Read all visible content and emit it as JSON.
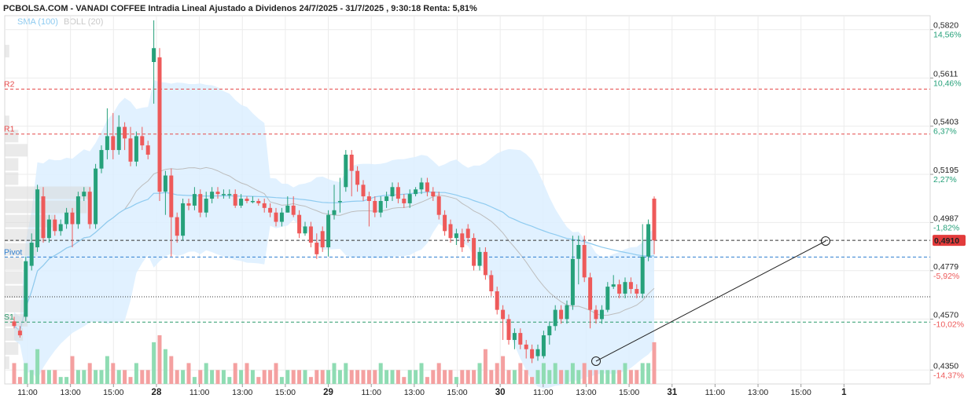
{
  "header": {
    "title": "PCBOLSA.COM - VANADI COFFEE Intradia Lineal Ajustado a Dividenos 24/7/2025 - 31/7/2025 , 9:30:18 Renta: 5,81%",
    "legend_sma": "SMA (100)",
    "legend_boll": "BOLL (20)"
  },
  "colors": {
    "up": "#26a17a",
    "down": "#ee5a5a",
    "volume_up": "#8fdcb3",
    "volume_down": "#f4a0a0",
    "band_fill": "#dcefff",
    "sma": "#8ecbf0",
    "boll_mid": "#bdbdbd",
    "resistance": "#e64a4a",
    "pivot": "#2f7fd0",
    "support": "#2a9a6a",
    "current_price_bg": "#e23b3b"
  },
  "chart_data": {
    "type": "candlestick",
    "title": "PCBOLSA.COM - VANADI COFFEE Intradia Lineal Ajustado a Dividenos 24/7/2025 - 31/7/2025 , 9:30:18 Renta: 5,81%",
    "ylim": [
      0.429,
      0.588
    ],
    "grid": true,
    "x_ticks": [
      {
        "label": "11:00",
        "day": false
      },
      {
        "label": "13:00",
        "day": false
      },
      {
        "label": "15:00",
        "day": false
      },
      {
        "label": "28",
        "day": true
      },
      {
        "label": "11:00",
        "day": false
      },
      {
        "label": "13:00",
        "day": false
      },
      {
        "label": "15:00",
        "day": false
      },
      {
        "label": "29",
        "day": true
      },
      {
        "label": "11:00",
        "day": false
      },
      {
        "label": "13:00",
        "day": false
      },
      {
        "label": "15:00",
        "day": false
      },
      {
        "label": "30",
        "day": true
      },
      {
        "label": "11:00",
        "day": false
      },
      {
        "label": "13:00",
        "day": false
      },
      {
        "label": "15:00",
        "day": false
      },
      {
        "label": "31",
        "day": true
      },
      {
        "label": "11:00",
        "day": false
      },
      {
        "label": "13:00",
        "day": false
      },
      {
        "label": "15:00",
        "day": false
      },
      {
        "label": "1",
        "day": true
      }
    ],
    "y_axis": [
      {
        "price": "0,5820",
        "pct": "14,56%",
        "value": 0.582
      },
      {
        "price": "0,5611",
        "pct": "10,46%",
        "value": 0.5611
      },
      {
        "price": "0,5403",
        "pct": "6,37%",
        "value": 0.5403
      },
      {
        "price": "0,5195",
        "pct": "2,27%",
        "value": 0.5195
      },
      {
        "price": "0,4987",
        "pct": "-1,82%",
        "value": 0.4987
      },
      {
        "price": "0,4779",
        "pct": "-5,92%",
        "value": 0.4779
      },
      {
        "price": "0,4570",
        "pct": "-10,02%",
        "value": 0.457
      },
      {
        "price": "0,4350",
        "pct": "-14,37%",
        "value": 0.435
      }
    ],
    "current_price": {
      "label": "0,4910",
      "value": 0.491
    },
    "levels": [
      {
        "name": "R2",
        "value": 0.5563,
        "kind": "resistance"
      },
      {
        "name": "R1",
        "value": 0.5369,
        "kind": "resistance"
      },
      {
        "name": "Pivot",
        "value": 0.4838,
        "kind": "pivot"
      },
      {
        "name": "S1",
        "value": 0.4557,
        "kind": "support"
      }
    ],
    "candles": [
      [
        0.456,
        0.454,
        0.458,
        0.453
      ],
      [
        0.452,
        0.45,
        0.454,
        0.449
      ],
      [
        0.458,
        0.482,
        0.484,
        0.456
      ],
      [
        0.48,
        0.49,
        0.494,
        0.478
      ],
      [
        0.488,
        0.513,
        0.515,
        0.486
      ],
      [
        0.51,
        0.492,
        0.514,
        0.49
      ],
      [
        0.492,
        0.5,
        0.502,
        0.49
      ],
      [
        0.5,
        0.495,
        0.502,
        0.493
      ],
      [
        0.495,
        0.498,
        0.5,
        0.493
      ],
      [
        0.498,
        0.503,
        0.505,
        0.496
      ],
      [
        0.503,
        0.498,
        0.505,
        0.488
      ],
      [
        0.498,
        0.51,
        0.512,
        0.496
      ],
      [
        0.51,
        0.512,
        0.514,
        0.508
      ],
      [
        0.512,
        0.498,
        0.514,
        0.496
      ],
      [
        0.498,
        0.522,
        0.524,
        0.496
      ],
      [
        0.522,
        0.53,
        0.532,
        0.52
      ],
      [
        0.53,
        0.536,
        0.548,
        0.526
      ],
      [
        0.536,
        0.53,
        0.546,
        0.526
      ],
      [
        0.53,
        0.54,
        0.545,
        0.528
      ],
      [
        0.54,
        0.535,
        0.542,
        0.53
      ],
      [
        0.535,
        0.525,
        0.54,
        0.523
      ],
      [
        0.525,
        0.536,
        0.538,
        0.523
      ],
      [
        0.536,
        0.532,
        0.54,
        0.53
      ],
      [
        0.532,
        0.528,
        0.534,
        0.526
      ],
      [
        0.568,
        0.574,
        0.586,
        0.55
      ],
      [
        0.57,
        0.512,
        0.574,
        0.508
      ],
      [
        0.512,
        0.519,
        0.521,
        0.502
      ],
      [
        0.519,
        0.501,
        0.522,
        0.484
      ],
      [
        0.501,
        0.493,
        0.503,
        0.49
      ],
      [
        0.493,
        0.507,
        0.509,
        0.491
      ],
      [
        0.507,
        0.506,
        0.509,
        0.504
      ],
      [
        0.506,
        0.511,
        0.514,
        0.504
      ],
      [
        0.511,
        0.503,
        0.513,
        0.501
      ],
      [
        0.503,
        0.509,
        0.512,
        0.501
      ],
      [
        0.509,
        0.512,
        0.514,
        0.507
      ],
      [
        0.512,
        0.511,
        0.514,
        0.509
      ],
      [
        0.511,
        0.511,
        0.513,
        0.509
      ],
      [
        0.511,
        0.511,
        0.513,
        0.509
      ],
      [
        0.511,
        0.506,
        0.513,
        0.505
      ],
      [
        0.506,
        0.509,
        0.511,
        0.505
      ],
      [
        0.509,
        0.508,
        0.51,
        0.507
      ],
      [
        0.508,
        0.508,
        0.51,
        0.507
      ],
      [
        0.508,
        0.507,
        0.509,
        0.506
      ],
      [
        0.507,
        0.505,
        0.509,
        0.503
      ],
      [
        0.505,
        0.503,
        0.507,
        0.501
      ],
      [
        0.503,
        0.499,
        0.505,
        0.497
      ],
      [
        0.499,
        0.503,
        0.505,
        0.497
      ],
      [
        0.503,
        0.506,
        0.51,
        0.503
      ],
      [
        0.506,
        0.502,
        0.51,
        0.501
      ],
      [
        0.502,
        0.494,
        0.504,
        0.492
      ],
      [
        0.494,
        0.497,
        0.499,
        0.493
      ],
      [
        0.497,
        0.49,
        0.499,
        0.488
      ],
      [
        0.49,
        0.485,
        0.494,
        0.483
      ],
      [
        0.495,
        0.488,
        0.497,
        0.486
      ],
      [
        0.488,
        0.502,
        0.504,
        0.484
      ],
      [
        0.502,
        0.504,
        0.515,
        0.5
      ],
      [
        0.508,
        0.508,
        0.518,
        0.503
      ],
      [
        0.514,
        0.528,
        0.53,
        0.512
      ],
      [
        0.528,
        0.521,
        0.53,
        0.51
      ],
      [
        0.521,
        0.515,
        0.523,
        0.512
      ],
      [
        0.515,
        0.51,
        0.517,
        0.508
      ],
      [
        0.51,
        0.508,
        0.512,
        0.497
      ],
      [
        0.508,
        0.503,
        0.51,
        0.501
      ],
      [
        0.503,
        0.508,
        0.51,
        0.501
      ],
      [
        0.508,
        0.51,
        0.512,
        0.505
      ],
      [
        0.51,
        0.514,
        0.516,
        0.508
      ],
      [
        0.514,
        0.509,
        0.516,
        0.507
      ],
      [
        0.509,
        0.507,
        0.511,
        0.505
      ],
      [
        0.507,
        0.511,
        0.513,
        0.505
      ],
      [
        0.511,
        0.513,
        0.514,
        0.51
      ],
      [
        0.513,
        0.516,
        0.518,
        0.511
      ],
      [
        0.516,
        0.512,
        0.518,
        0.51
      ],
      [
        0.512,
        0.51,
        0.514,
        0.508
      ],
      [
        0.51,
        0.502,
        0.512,
        0.5
      ],
      [
        0.502,
        0.495,
        0.504,
        0.493
      ],
      [
        0.498,
        0.492,
        0.5,
        0.49
      ],
      [
        0.492,
        0.494,
        0.496,
        0.489
      ],
      [
        0.494,
        0.488,
        0.496,
        0.486
      ],
      [
        0.496,
        0.492,
        0.498,
        0.49
      ],
      [
        0.492,
        0.48,
        0.494,
        0.478
      ],
      [
        0.48,
        0.486,
        0.488,
        0.478
      ],
      [
        0.486,
        0.476,
        0.488,
        0.474
      ],
      [
        0.476,
        0.469,
        0.478,
        0.467
      ],
      [
        0.469,
        0.461,
        0.471,
        0.459
      ],
      [
        0.461,
        0.457,
        0.463,
        0.448
      ],
      [
        0.457,
        0.448,
        0.459,
        0.446
      ],
      [
        0.448,
        0.451,
        0.453,
        0.444
      ],
      [
        0.451,
        0.446,
        0.453,
        0.444
      ],
      [
        0.446,
        0.444,
        0.448,
        0.44
      ],
      [
        0.444,
        0.44,
        0.446,
        0.438
      ],
      [
        0.441,
        0.444,
        0.446,
        0.439
      ],
      [
        0.441,
        0.45,
        0.452,
        0.44
      ],
      [
        0.45,
        0.454,
        0.456,
        0.446
      ],
      [
        0.454,
        0.461,
        0.463,
        0.452
      ],
      [
        0.461,
        0.457,
        0.463,
        0.455
      ],
      [
        0.457,
        0.463,
        0.465,
        0.455
      ],
      [
        0.463,
        0.483,
        0.493,
        0.461
      ],
      [
        0.483,
        0.489,
        0.493,
        0.472
      ],
      [
        0.489,
        0.475,
        0.493,
        0.473
      ],
      [
        0.475,
        0.461,
        0.477,
        0.453
      ],
      [
        0.461,
        0.457,
        0.463,
        0.455
      ],
      [
        0.457,
        0.461,
        0.463,
        0.455
      ],
      [
        0.461,
        0.471,
        0.473,
        0.46
      ],
      [
        0.471,
        0.472,
        0.476,
        0.47
      ],
      [
        0.472,
        0.468,
        0.474,
        0.466
      ],
      [
        0.468,
        0.473,
        0.475,
        0.466
      ],
      [
        0.473,
        0.47,
        0.475,
        0.468
      ],
      [
        0.47,
        0.468,
        0.472,
        0.466
      ],
      [
        0.468,
        0.484,
        0.498,
        0.466
      ],
      [
        0.484,
        0.498,
        0.5,
        0.482
      ],
      [
        0.509,
        0.491,
        0.51,
        0.485
      ]
    ],
    "volumes": [
      3,
      1,
      3,
      2,
      5,
      2,
      2,
      2,
      1,
      1,
      4,
      2,
      2,
      3,
      2,
      2,
      4,
      3,
      2,
      2,
      1,
      3,
      2,
      2,
      6,
      7,
      5,
      4,
      2,
      2,
      3,
      1,
      2,
      3,
      2,
      2,
      2,
      1,
      3,
      2,
      3,
      2,
      1,
      2,
      2,
      3,
      1,
      2,
      2,
      2,
      2,
      1,
      2,
      2,
      2,
      3,
      2,
      3,
      2,
      2,
      2,
      2,
      2,
      3,
      2,
      2,
      2,
      1,
      2,
      2,
      3,
      1,
      2,
      3,
      2,
      2,
      1,
      2,
      2,
      2,
      3,
      5,
      2,
      3,
      4,
      2,
      2,
      3,
      2,
      1,
      2,
      3,
      2,
      3,
      2,
      2,
      3,
      2,
      3,
      2,
      2,
      2,
      2,
      2,
      2,
      3,
      2,
      2,
      3,
      3,
      6
    ]
  }
}
